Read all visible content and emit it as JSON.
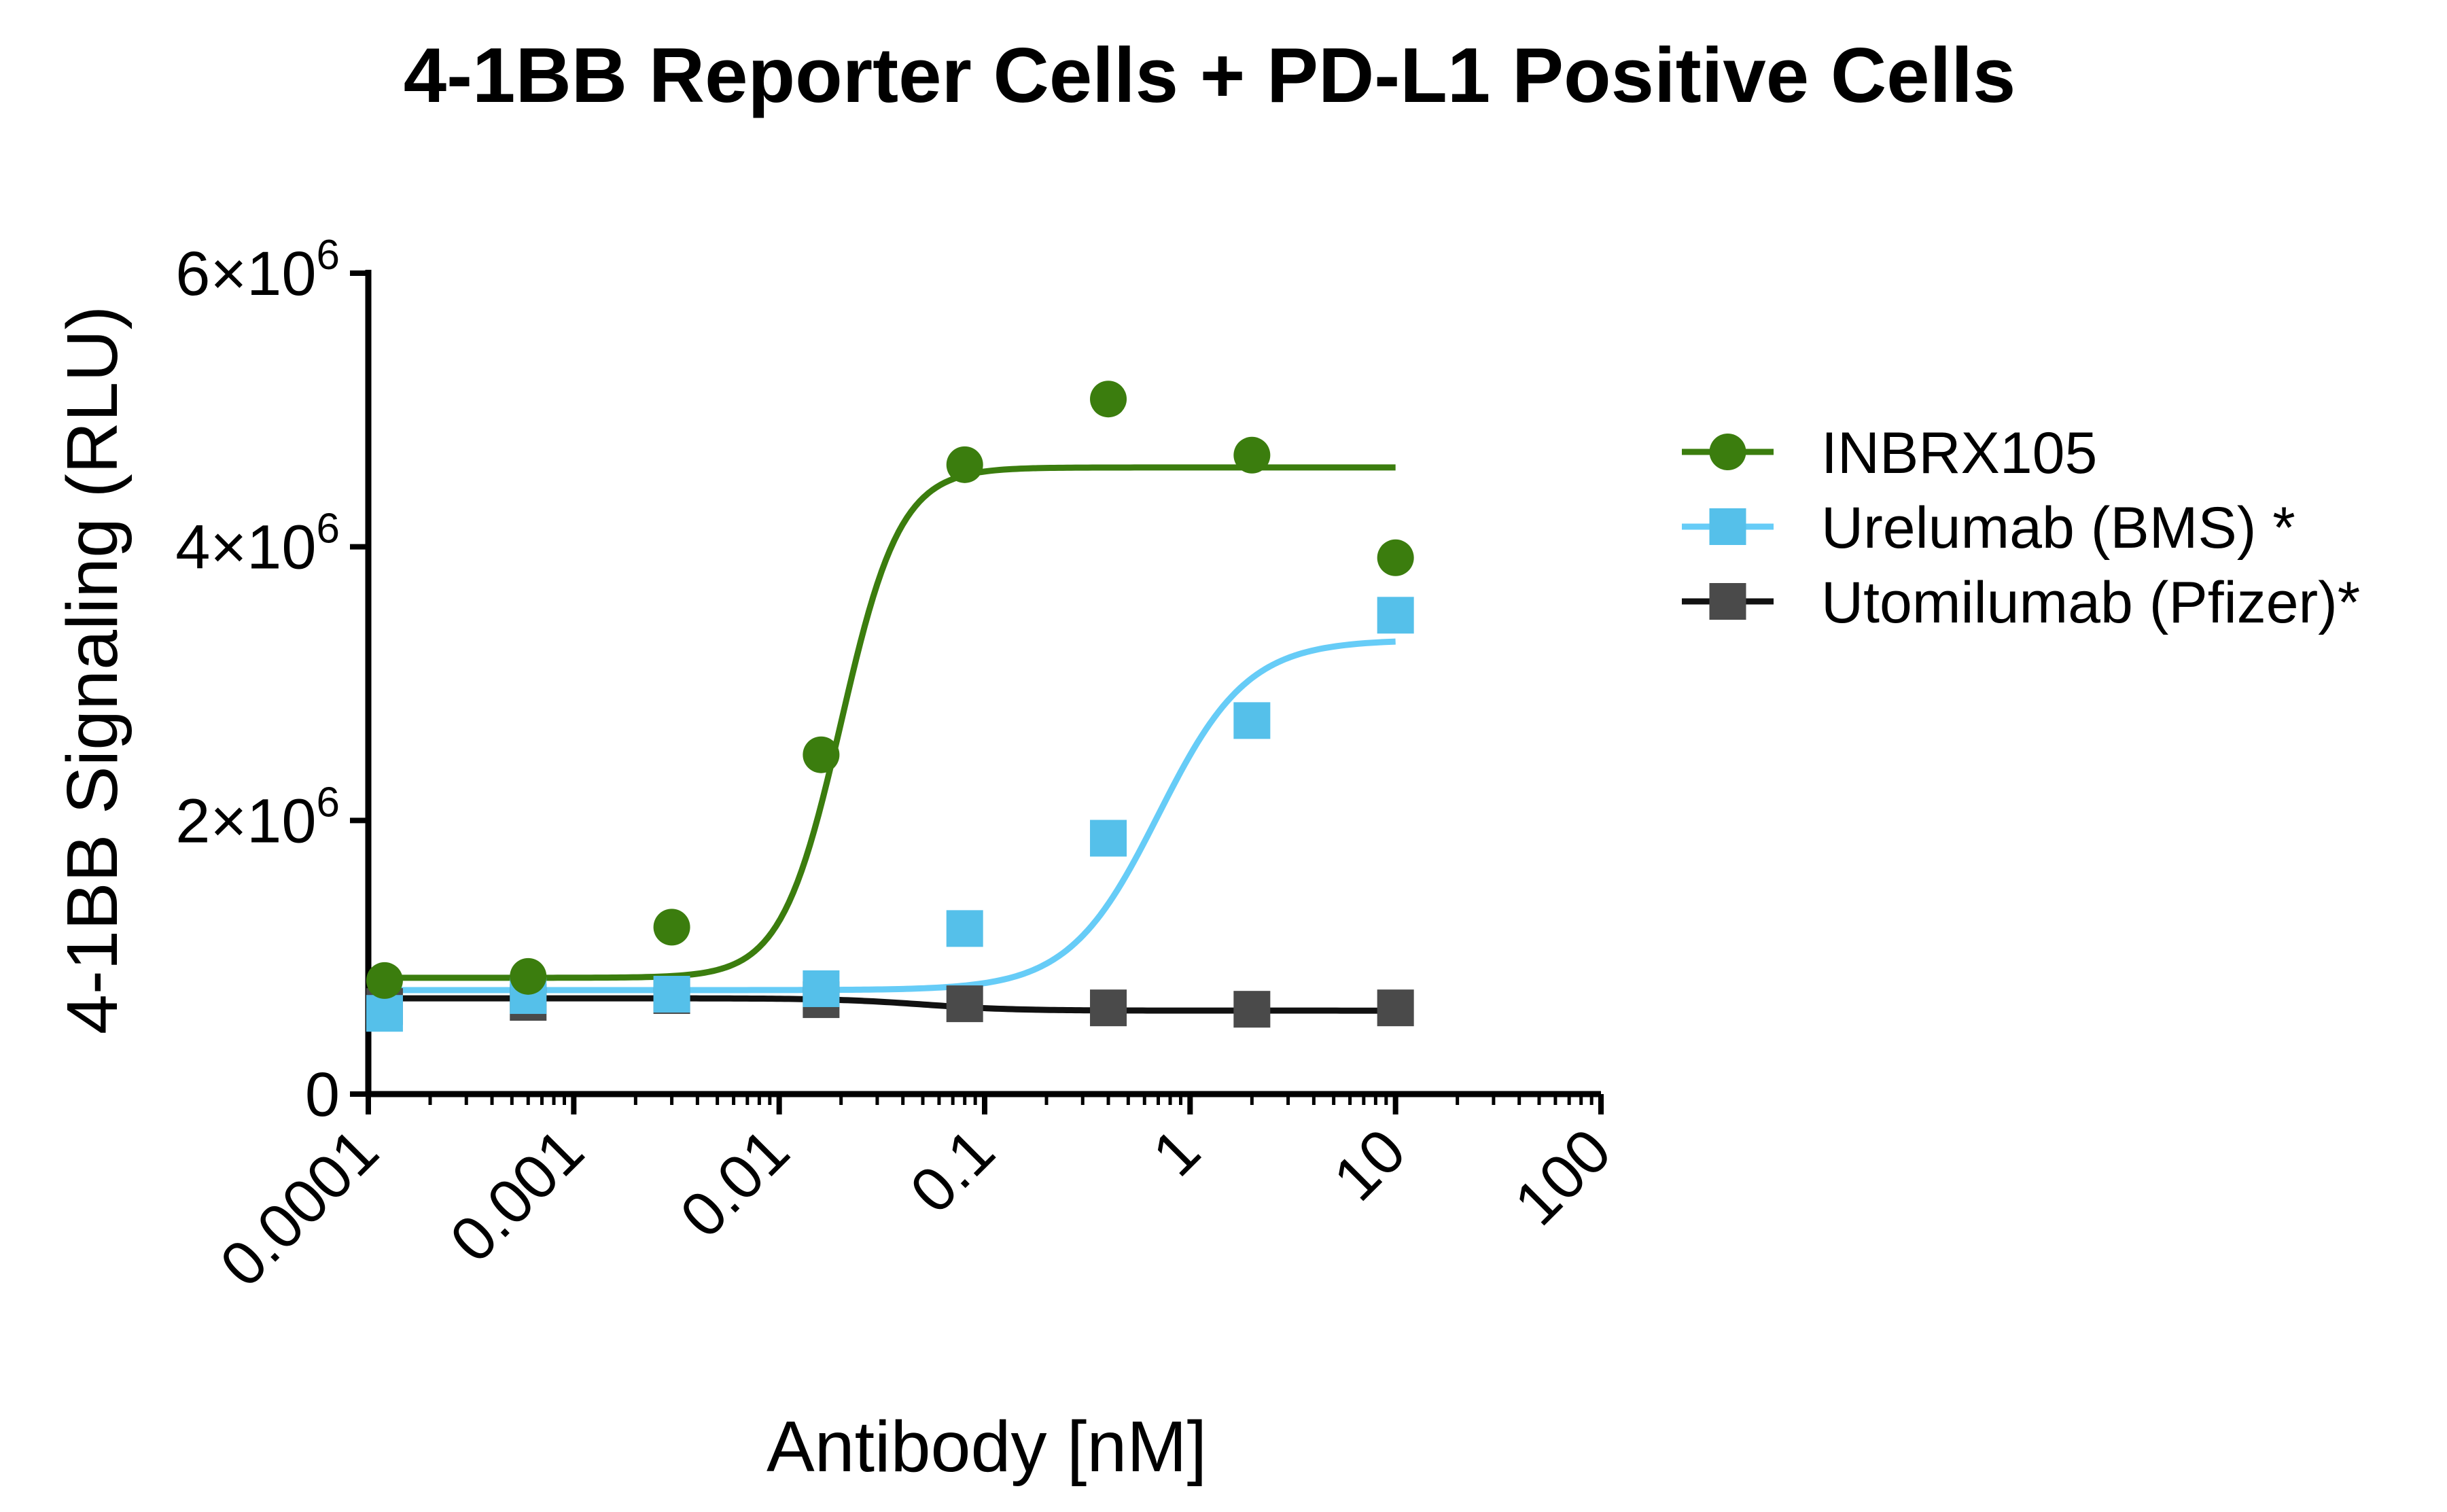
{
  "chart_data": {
    "type": "scatter",
    "title": "4-1BB Reporter Cells + PD-L1 Positive Cells",
    "xlabel": "Antibody [nM]",
    "ylabel": "4-1BB Signaling (RLU)",
    "xscale": "log",
    "xlim": [
      0.0001,
      100
    ],
    "ylim": [
      0,
      6000000
    ],
    "x_ticks": [
      {
        "value": 0.0001,
        "label": "0.0001"
      },
      {
        "value": 0.001,
        "label": "0.001"
      },
      {
        "value": 0.01,
        "label": "0.01"
      },
      {
        "value": 0.1,
        "label": "0.1"
      },
      {
        "value": 1,
        "label": "1"
      },
      {
        "value": 10,
        "label": "10"
      },
      {
        "value": 100,
        "label": "100"
      }
    ],
    "y_ticks": [
      {
        "value": 0,
        "base": "0",
        "exp": ""
      },
      {
        "value": 2000000,
        "base": "2×10",
        "exp": "6"
      },
      {
        "value": 4000000,
        "base": "4×10",
        "exp": "6"
      },
      {
        "value": 6000000,
        "base": "6×10",
        "exp": "6"
      }
    ],
    "legend_position": "right",
    "series": [
      {
        "name": "INBRX105",
        "color": "#3b7d0e",
        "marker": "circle",
        "x": [
          0.00012,
          0.0006,
          0.003,
          0.016,
          0.08,
          0.4,
          2,
          10
        ],
        "y": [
          830000,
          860000,
          1220000,
          2480000,
          4600000,
          5080000,
          4670000,
          3920000
        ],
        "fit": {
          "bottom": 850000,
          "top": 4580000,
          "ec50": 0.02,
          "hill": 3.0
        }
      },
      {
        "name": "Urelumab (BMS) *",
        "color": "#55c0ea",
        "fit_color": "#66ccf7",
        "marker": "square",
        "x": [
          0.00012,
          0.0006,
          0.003,
          0.016,
          0.08,
          0.4,
          2,
          10
        ],
        "y": [
          590000,
          720000,
          730000,
          770000,
          1210000,
          1870000,
          2730000,
          3500000
        ],
        "fit": {
          "bottom": 760000,
          "top": 3320000,
          "ec50": 0.7,
          "hill": 2.0
        }
      },
      {
        "name": "Utomilumab (Pfizer)*",
        "color": "#4a4a4a",
        "fit_color": "#111111",
        "marker": "square",
        "x": [
          0.00012,
          0.0006,
          0.003,
          0.016,
          0.08,
          0.4,
          2,
          10
        ],
        "y": [
          640000,
          670000,
          720000,
          690000,
          660000,
          630000,
          620000,
          630000
        ],
        "fit": {
          "bottom": 610000,
          "top": 700000,
          "ec50": 0.05,
          "hill": -2.0
        }
      }
    ]
  }
}
